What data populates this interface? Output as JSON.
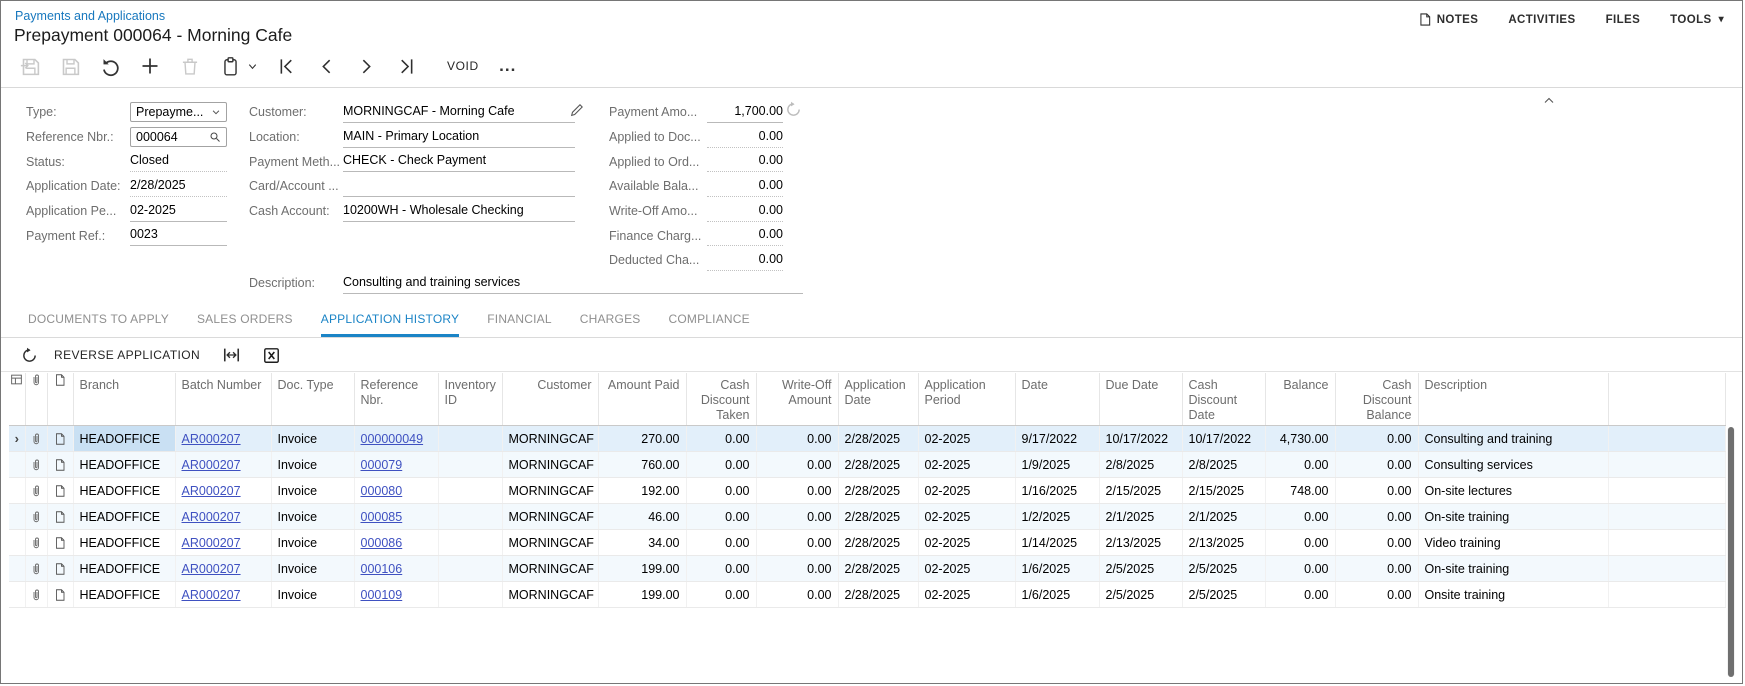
{
  "header": {
    "breadcrumb": "Payments and Applications",
    "title": "Prepayment 000064 - Morning Cafe",
    "notes_label": "NOTES",
    "activities_label": "ACTIVITIES",
    "files_label": "FILES",
    "tools_label": "TOOLS",
    "void_label": "VOID"
  },
  "form": {
    "type": {
      "label": "Type:",
      "value": "Prepayme..."
    },
    "reference_nbr": {
      "label": "Reference Nbr.:",
      "value": "000064"
    },
    "status": {
      "label": "Status:",
      "value": "Closed"
    },
    "application_date": {
      "label": "Application Date:",
      "value": "2/28/2025"
    },
    "application_period": {
      "label": "Application Pe...",
      "value": "02-2025"
    },
    "payment_ref": {
      "label": "Payment Ref.:",
      "value": "0023"
    },
    "customer": {
      "label": "Customer:",
      "value": "MORNINGCAF - Morning Cafe"
    },
    "location": {
      "label": "Location:",
      "value": "MAIN - Primary Location"
    },
    "payment_method": {
      "label": "Payment Meth...",
      "value": "CHECK - Check Payment"
    },
    "card_account": {
      "label": "Card/Account ...",
      "value": ""
    },
    "cash_account": {
      "label": "Cash Account:",
      "value": "10200WH - Wholesale Checking"
    },
    "description": {
      "label": "Description:",
      "value": "Consulting and training services"
    },
    "payment_amount": {
      "label": "Payment Amo...",
      "value": "1,700.00"
    },
    "applied_to_documents": {
      "label": "Applied to Doc...",
      "value": "0.00"
    },
    "applied_to_orders": {
      "label": "Applied to Ord...",
      "value": "0.00"
    },
    "available_balance": {
      "label": "Available Bala...",
      "value": "0.00"
    },
    "writeoff_amount": {
      "label": "Write-Off Amo...",
      "value": "0.00"
    },
    "finance_charges": {
      "label": "Finance Charg...",
      "value": "0.00"
    },
    "deducted_charges": {
      "label": "Deducted Cha...",
      "value": "0.00"
    }
  },
  "tabs": {
    "items": [
      "DOCUMENTS TO APPLY",
      "SALES ORDERS",
      "APPLICATION HISTORY",
      "FINANCIAL",
      "CHARGES",
      "COMPLIANCE"
    ],
    "active": "APPLICATION HISTORY"
  },
  "grid": {
    "toolbar": {
      "reverse_application_label": "REVERSE APPLICATION"
    },
    "columns": [
      "Branch",
      "Batch Number",
      "Doc. Type",
      "Reference Nbr.",
      "Inventory ID",
      "Customer",
      "Amount Paid",
      "Cash Discount Taken",
      "Write-Off Amount",
      "Application Date",
      "Application Period",
      "Date",
      "Due Date",
      "Cash Discount Date",
      "Balance",
      "Cash Discount Balance",
      "Description"
    ],
    "rows": [
      {
        "selected": true,
        "branch": "HEADOFFICE",
        "batch": "AR000207",
        "doc_type": "Invoice",
        "reference": "000000049",
        "inventory": "",
        "customer": "MORNINGCAF",
        "amount_paid": "270.00",
        "cash_discount_taken": "0.00",
        "writeoff_amount": "0.00",
        "application_date": "2/28/2025",
        "application_period": "02-2025",
        "date": "9/17/2022",
        "due_date": "10/17/2022",
        "cash_discount_date": "10/17/2022",
        "balance": "4,730.00",
        "cash_discount_balance": "0.00",
        "description": "Consulting and training"
      },
      {
        "selected": false,
        "branch": "HEADOFFICE",
        "batch": "AR000207",
        "doc_type": "Invoice",
        "reference": "000079",
        "inventory": "",
        "customer": "MORNINGCAF",
        "amount_paid": "760.00",
        "cash_discount_taken": "0.00",
        "writeoff_amount": "0.00",
        "application_date": "2/28/2025",
        "application_period": "02-2025",
        "date": "1/9/2025",
        "due_date": "2/8/2025",
        "cash_discount_date": "2/8/2025",
        "balance": "0.00",
        "cash_discount_balance": "0.00",
        "description": "Consulting services"
      },
      {
        "selected": false,
        "branch": "HEADOFFICE",
        "batch": "AR000207",
        "doc_type": "Invoice",
        "reference": "000080",
        "inventory": "",
        "customer": "MORNINGCAF",
        "amount_paid": "192.00",
        "cash_discount_taken": "0.00",
        "writeoff_amount": "0.00",
        "application_date": "2/28/2025",
        "application_period": "02-2025",
        "date": "1/16/2025",
        "due_date": "2/15/2025",
        "cash_discount_date": "2/15/2025",
        "balance": "748.00",
        "cash_discount_balance": "0.00",
        "description": "On-site lectures"
      },
      {
        "selected": false,
        "branch": "HEADOFFICE",
        "batch": "AR000207",
        "doc_type": "Invoice",
        "reference": "000085",
        "inventory": "",
        "customer": "MORNINGCAF",
        "amount_paid": "46.00",
        "cash_discount_taken": "0.00",
        "writeoff_amount": "0.00",
        "application_date": "2/28/2025",
        "application_period": "02-2025",
        "date": "1/2/2025",
        "due_date": "2/1/2025",
        "cash_discount_date": "2/1/2025",
        "balance": "0.00",
        "cash_discount_balance": "0.00",
        "description": "On-site training"
      },
      {
        "selected": false,
        "branch": "HEADOFFICE",
        "batch": "AR000207",
        "doc_type": "Invoice",
        "reference": "000086",
        "inventory": "",
        "customer": "MORNINGCAF",
        "amount_paid": "34.00",
        "cash_discount_taken": "0.00",
        "writeoff_amount": "0.00",
        "application_date": "2/28/2025",
        "application_period": "02-2025",
        "date": "1/14/2025",
        "due_date": "2/13/2025",
        "cash_discount_date": "2/13/2025",
        "balance": "0.00",
        "cash_discount_balance": "0.00",
        "description": "Video training"
      },
      {
        "selected": false,
        "branch": "HEADOFFICE",
        "batch": "AR000207",
        "doc_type": "Invoice",
        "reference": "000106",
        "inventory": "",
        "customer": "MORNINGCAF",
        "amount_paid": "199.00",
        "cash_discount_taken": "0.00",
        "writeoff_amount": "0.00",
        "application_date": "2/28/2025",
        "application_period": "02-2025",
        "date": "1/6/2025",
        "due_date": "2/5/2025",
        "cash_discount_date": "2/5/2025",
        "balance": "0.00",
        "cash_discount_balance": "0.00",
        "description": "On-site training"
      },
      {
        "selected": false,
        "branch": "HEADOFFICE",
        "batch": "AR000207",
        "doc_type": "Invoice",
        "reference": "000109",
        "inventory": "",
        "customer": "MORNINGCAF",
        "amount_paid": "199.00",
        "cash_discount_taken": "0.00",
        "writeoff_amount": "0.00",
        "application_date": "2/28/2025",
        "application_period": "02-2025",
        "date": "1/6/2025",
        "due_date": "2/5/2025",
        "cash_discount_date": "2/5/2025",
        "balance": "0.00",
        "cash_discount_balance": "0.00",
        "description": "Onsite training"
      }
    ]
  },
  "colors": {
    "accent_blue": "#1b84c6",
    "breadcrumb_blue": "#1878be",
    "grid_link": "#3f51c1",
    "selected_row_bg": "#e2effa",
    "active_cell_bg": "#c9e0f3",
    "alt_row_bg": "#f3f9fd"
  }
}
